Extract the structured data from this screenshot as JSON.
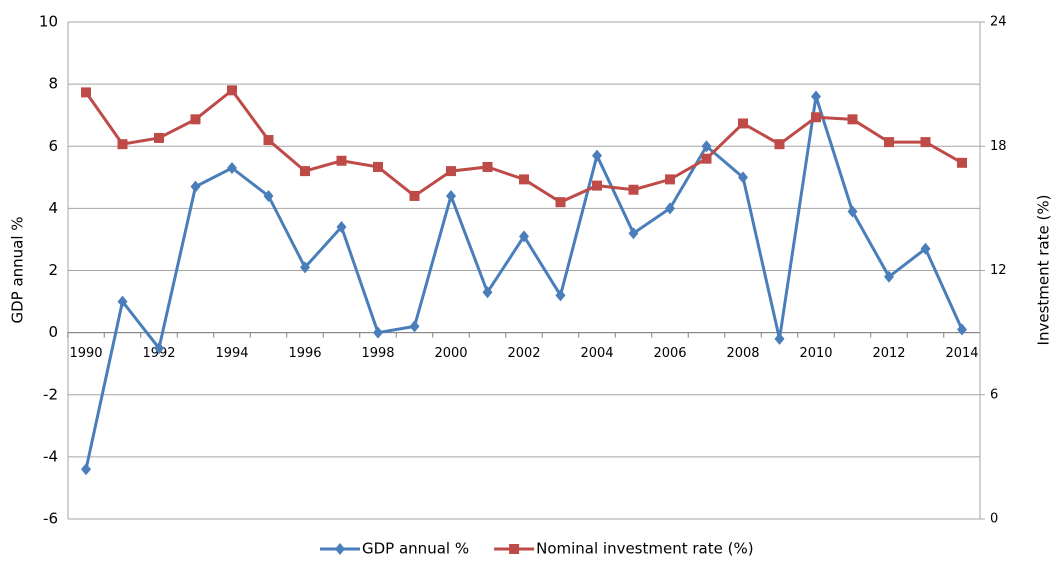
{
  "chart_data": {
    "type": "line",
    "categories": [
      "1990",
      null,
      "1992",
      null,
      "1994",
      null,
      "1996",
      null,
      "1998",
      null,
      "2000",
      null,
      "2002",
      null,
      "2004",
      null,
      "2006",
      null,
      "2008",
      null,
      "2010",
      null,
      "2012",
      null,
      "2014"
    ],
    "series": [
      {
        "name": "GDP annual %",
        "color": "#4a7ebb",
        "marker": "diamond",
        "values": [
          -4.4,
          1.0,
          -0.5,
          4.7,
          5.3,
          4.4,
          2.1,
          3.4,
          0.0,
          0.2,
          4.4,
          1.3,
          3.1,
          1.2,
          5.7,
          3.2,
          4.0,
          6.0,
          5.0,
          -0.2,
          7.6,
          3.9,
          1.8,
          2.7,
          0.1
        ]
      },
      {
        "name": "Nominal investment rate (%)",
        "color": "#be4b48",
        "marker": "square",
        "axis": "y2",
        "values": [
          20.6,
          18.1,
          18.4,
          19.3,
          20.7,
          18.3,
          16.8,
          17.3,
          17.0,
          15.6,
          16.8,
          17.0,
          16.4,
          15.3,
          16.1,
          15.9,
          16.4,
          17.4,
          19.1,
          18.1,
          19.4,
          19.3,
          18.2,
          18.2,
          17.2
        ]
      }
    ],
    "y_label": "GDP annual %",
    "y2_label": "Investment rate (%)",
    "ylim": [
      -6,
      10
    ],
    "yticks": [
      -6,
      -4,
      -2,
      0,
      2,
      4,
      6,
      8,
      10
    ],
    "y2lim": [
      0,
      24
    ],
    "y2ticks": [
      0,
      6,
      12,
      18,
      24
    ],
    "grid": true,
    "legend": "bottom"
  }
}
